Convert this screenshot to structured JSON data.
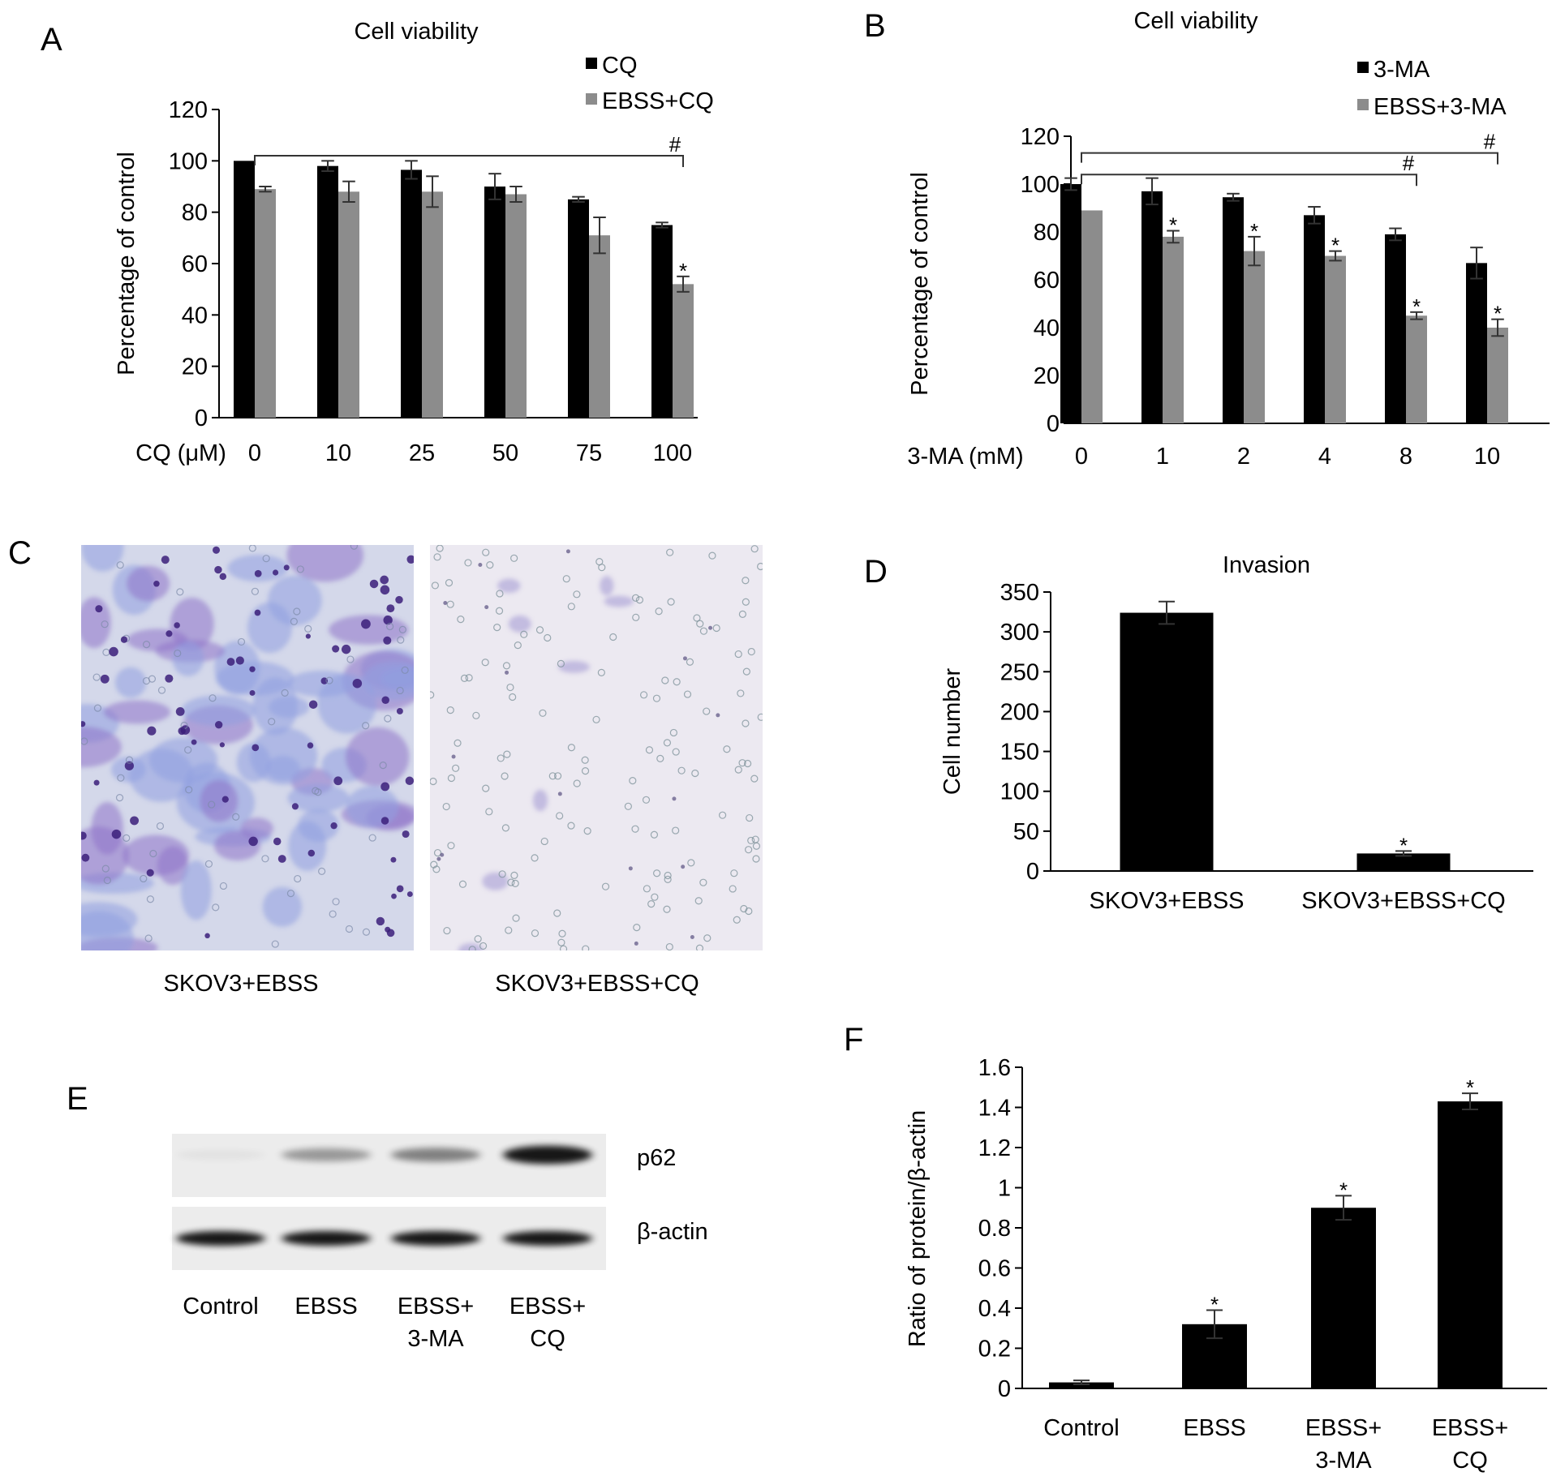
{
  "colors": {
    "black_bar": "#000000",
    "gray_bar": "#8c8c8c",
    "axis": "#000000"
  },
  "panels": {
    "A": {
      "label": "A"
    },
    "B": {
      "label": "B"
    },
    "C": {
      "label": "C",
      "captions": [
        "SKOV3+EBSS",
        "SKOV3+EBSS+CQ"
      ]
    },
    "D": {
      "label": "D"
    },
    "E": {
      "label": "E",
      "bands": [
        "p62",
        "β-actin"
      ],
      "lanes": [
        [
          "Control"
        ],
        [
          "EBSS"
        ],
        [
          "EBSS+",
          "3-MA"
        ],
        [
          "EBSS+",
          "CQ"
        ]
      ],
      "p62_intensity": [
        0.04,
        0.35,
        0.45,
        0.9
      ],
      "actin_intensity": [
        0.9,
        0.9,
        0.9,
        0.9
      ]
    },
    "F": {
      "label": "F"
    }
  },
  "chart_data": [
    {
      "id": "A",
      "type": "bar",
      "title": "Cell viability",
      "ylabel": "Percentage of control",
      "xlabel": "CQ (μM)",
      "categories": [
        "0",
        "10",
        "25",
        "50",
        "75",
        "100"
      ],
      "ylim": [
        0,
        120
      ],
      "yticks": [
        0,
        20,
        40,
        60,
        80,
        100,
        120
      ],
      "series": [
        {
          "name": "CQ",
          "color": "#000000",
          "values": [
            100,
            98,
            96.5,
            90,
            85,
            75
          ],
          "errors": [
            0,
            2,
            3.5,
            5,
            1,
            1
          ]
        },
        {
          "name": "EBSS+CQ",
          "color": "#8c8c8c",
          "values": [
            89,
            88,
            88,
            87,
            71,
            52
          ],
          "errors": [
            1,
            4,
            6,
            3,
            7,
            3
          ]
        }
      ],
      "stars": [
        {
          "series": 1,
          "index": 5,
          "text": "*"
        }
      ],
      "brackets": [
        {
          "from": 0,
          "to": 5,
          "value": 102,
          "text": "#"
        }
      ],
      "legend": "top-right",
      "grid": false
    },
    {
      "id": "B",
      "type": "bar",
      "title": "Cell viability",
      "ylabel": "Percentage of control",
      "xlabel": "3-MA (mM)",
      "categories": [
        "0",
        "1",
        "2",
        "4",
        "8",
        "10"
      ],
      "ylim": [
        0,
        120
      ],
      "yticks": [
        0,
        20,
        40,
        60,
        80,
        100,
        120
      ],
      "series": [
        {
          "name": "3-MA",
          "color": "#000000",
          "values": [
            100,
            97,
            94.5,
            87,
            79,
            67
          ],
          "errors": [
            2.5,
            5.5,
            1.5,
            3.5,
            2.5,
            6.5
          ]
        },
        {
          "name": "EBSS+3-MA",
          "color": "#8c8c8c",
          "values": [
            89,
            78,
            72,
            70,
            45,
            40
          ],
          "errors": [
            0,
            2.5,
            6,
            2,
            1.5,
            3.5
          ]
        }
      ],
      "stars": [
        {
          "series": 1,
          "index": 1,
          "text": "*"
        },
        {
          "series": 1,
          "index": 2,
          "text": "*"
        },
        {
          "series": 1,
          "index": 3,
          "text": "*"
        },
        {
          "series": 1,
          "index": 4,
          "text": "*"
        },
        {
          "series": 1,
          "index": 5,
          "text": "*"
        }
      ],
      "brackets": [
        {
          "from": 0,
          "to": 4,
          "value": 104,
          "text": "#"
        },
        {
          "from": 0,
          "to": 5,
          "value": 113,
          "text": "#"
        }
      ],
      "legend": "top-right",
      "grid": false
    },
    {
      "id": "D",
      "type": "bar",
      "title": "Invasion",
      "ylabel": "Cell number",
      "xlabel": "",
      "categories": [
        "SKOV3+EBSS",
        "SKOV3+EBSS+CQ"
      ],
      "ylim": [
        0,
        350
      ],
      "yticks": [
        0,
        50,
        100,
        150,
        200,
        250,
        300,
        350
      ],
      "series": [
        {
          "color": "#000000",
          "values": [
            324,
            22
          ],
          "errors": [
            14,
            3
          ]
        }
      ],
      "stars": [
        {
          "series": 0,
          "index": 1,
          "text": "*"
        }
      ],
      "grid": false
    },
    {
      "id": "F",
      "type": "bar",
      "title": "",
      "ylabel": "Ratio of protein/β-actin",
      "xlabel": "",
      "categories": [
        [
          "Control"
        ],
        [
          "EBSS"
        ],
        [
          "EBSS+",
          "3-MA"
        ],
        [
          "EBSS+",
          "CQ"
        ]
      ],
      "ylim": [
        0,
        1.6
      ],
      "yticks": [
        0,
        0.2,
        0.4,
        0.6,
        0.8,
        1,
        1.2,
        1.4,
        1.6
      ],
      "series": [
        {
          "color": "#000000",
          "values": [
            0.03,
            0.32,
            0.9,
            1.43
          ],
          "errors": [
            0.01,
            0.07,
            0.06,
            0.04
          ]
        }
      ],
      "stars": [
        {
          "series": 0,
          "index": 1,
          "text": "*"
        },
        {
          "series": 0,
          "index": 2,
          "text": "*"
        },
        {
          "series": 0,
          "index": 3,
          "text": "*"
        }
      ],
      "grid": false
    }
  ]
}
